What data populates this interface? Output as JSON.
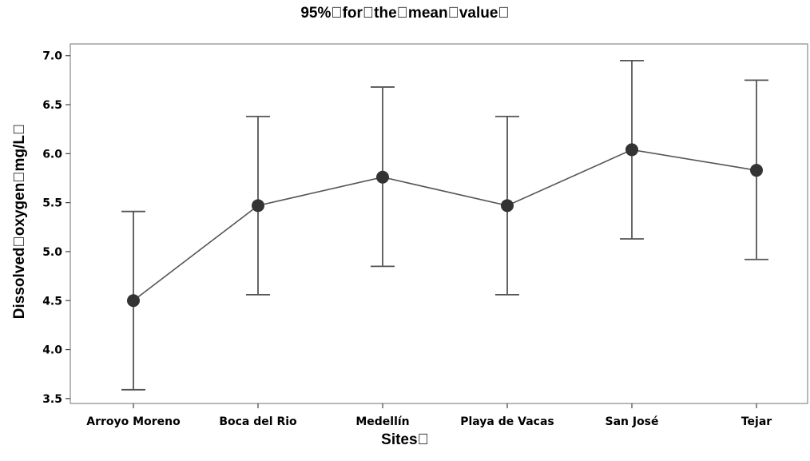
{
  "chart_data": {
    "type": "line",
    "title": "95%\u0000for\u0000the\u0000mean\u0000value\u0000",
    "xlabel": "Sites\u0000",
    "ylabel": "Dissolved\u0000oxygen\u0000mg/L\u0000",
    "categories": [
      "Arroyo Moreno",
      "Boca del Rio",
      "Medellín",
      "Playa de Vacas",
      "San José",
      "Tejar"
    ],
    "series": [
      {
        "values": [
          4.5,
          5.47,
          5.76,
          5.47,
          6.04,
          5.83
        ],
        "lower": [
          3.59,
          4.56,
          4.85,
          4.56,
          5.13,
          4.92
        ],
        "upper": [
          5.41,
          6.38,
          6.68,
          6.38,
          6.95,
          6.75
        ]
      }
    ],
    "ylim": [
      3.45,
      7.12
    ],
    "yticks": [
      "3.5",
      "4.0",
      "4.5",
      "5.0",
      "5.5",
      "6.0",
      "6.5",
      "7.0"
    ],
    "grid": false,
    "legend": "none",
    "colors": {
      "line": "#555555",
      "marker": "#333333",
      "axis": "#888888"
    }
  }
}
